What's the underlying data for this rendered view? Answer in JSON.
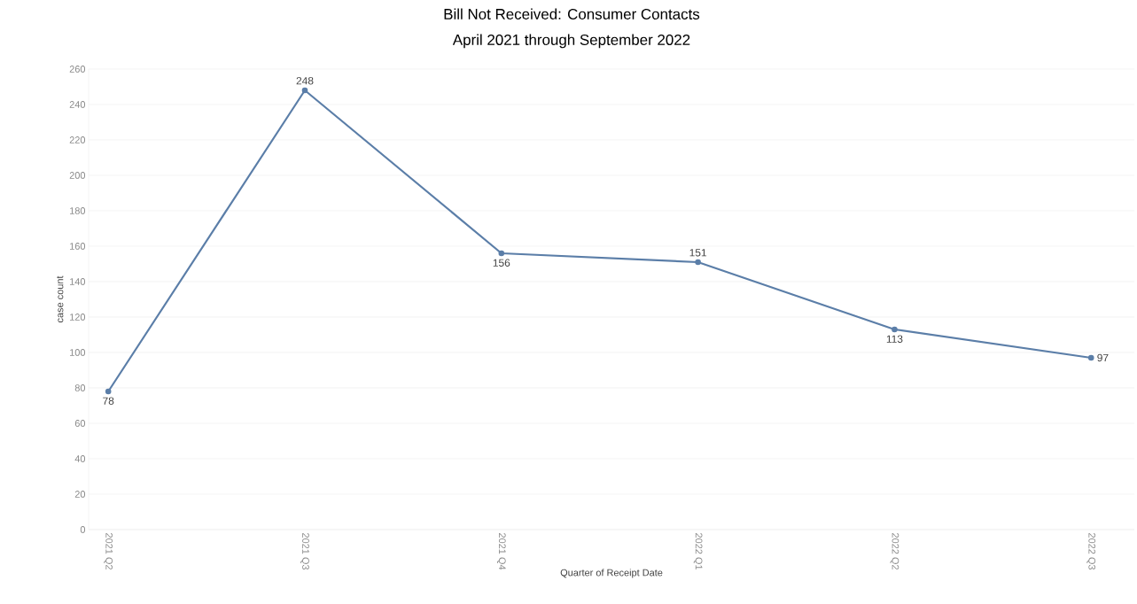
{
  "chart_data": {
    "type": "line",
    "title": "Bill Not Received:  Consumer Contacts",
    "subtitle": "April 2021 through September 2022",
    "xlabel": "Quarter of Receipt Date",
    "ylabel": "case count",
    "categories": [
      "2021 Q2",
      "2021 Q3",
      "2021 Q4",
      "2022 Q1",
      "2022 Q2",
      "2022 Q3"
    ],
    "values": [
      78,
      248,
      156,
      151,
      113,
      97
    ],
    "color": "#5b7ea8",
    "ylim": [
      0,
      260
    ],
    "yticks": [
      0,
      20,
      40,
      60,
      80,
      100,
      120,
      140,
      160,
      180,
      200,
      220,
      240,
      260
    ],
    "grid": "y",
    "marker": "circle",
    "line_style": "solid",
    "data_labels": true
  }
}
